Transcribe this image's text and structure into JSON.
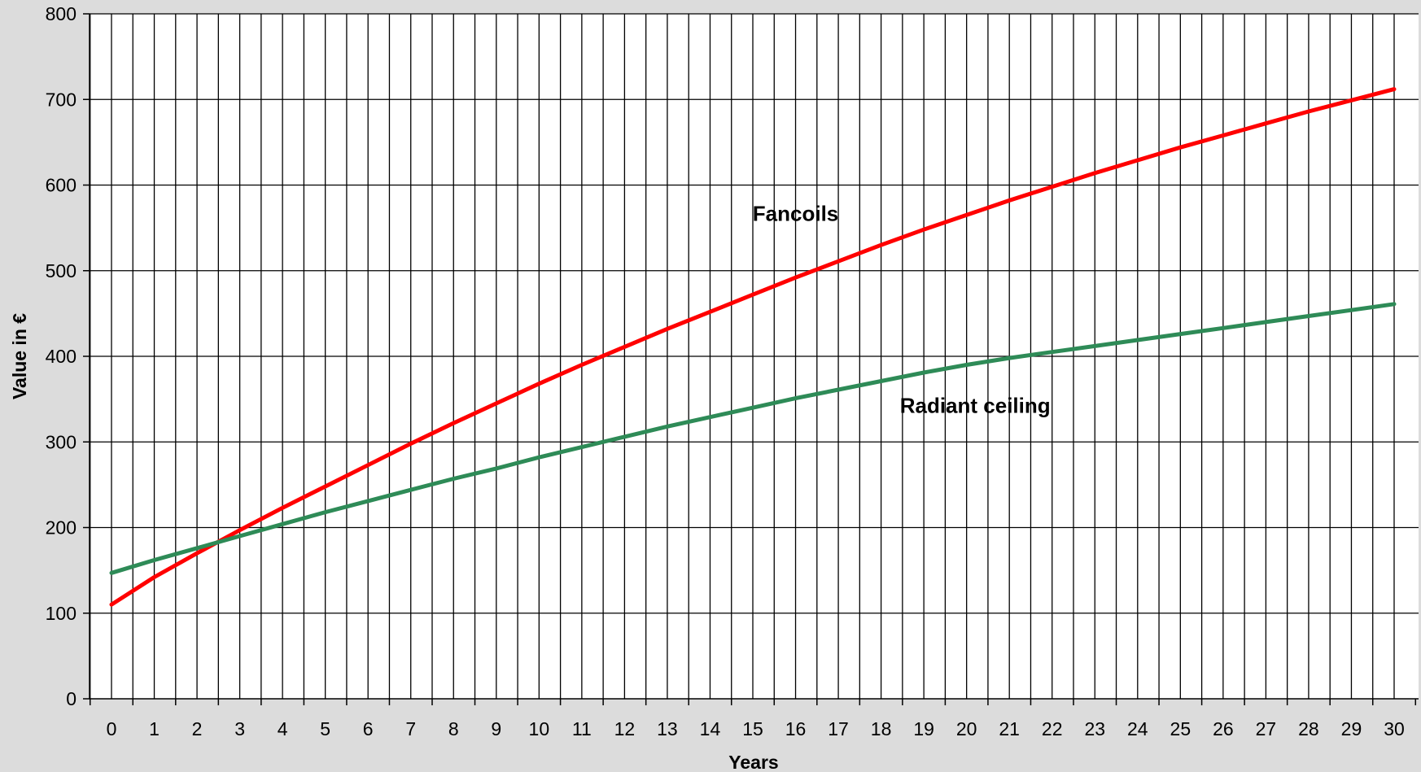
{
  "chart_data": {
    "type": "line",
    "title": "",
    "xlabel": "Years",
    "ylabel": "Value in €",
    "x": [
      0,
      1,
      2,
      3,
      4,
      5,
      6,
      7,
      8,
      9,
      10,
      11,
      12,
      13,
      14,
      15,
      16,
      17,
      18,
      19,
      20,
      21,
      22,
      23,
      24,
      25,
      26,
      27,
      28,
      29,
      30
    ],
    "xlim": [
      0,
      30
    ],
    "ylim": [
      0,
      800
    ],
    "yticks": [
      0,
      100,
      200,
      300,
      400,
      500,
      600,
      700,
      800
    ],
    "grid": true,
    "legend": "none",
    "series": [
      {
        "name": "Fancoils",
        "color": "#ff0000",
        "values": [
          110,
          142,
          170,
          197,
          223,
          248,
          273,
          298,
          322,
          345,
          368,
          390,
          411,
          432,
          452,
          472,
          492,
          511,
          530,
          548,
          565,
          582,
          598,
          614,
          629,
          644,
          658,
          672,
          686,
          699,
          712
        ]
      },
      {
        "name": "Radiant ceiling",
        "color": "#2e8b57",
        "values": [
          147,
          162,
          176,
          190,
          204,
          218,
          231,
          244,
          257,
          269,
          282,
          294,
          306,
          318,
          329,
          340,
          351,
          361,
          371,
          381,
          390,
          398,
          405,
          412,
          419,
          426,
          433,
          440,
          447,
          454,
          461
        ]
      }
    ],
    "annotations": [
      {
        "text": "Fancoils",
        "x": 16,
        "y": 558
      },
      {
        "text": "Radiant ceiling",
        "x": 20.2,
        "y": 334
      }
    ]
  }
}
